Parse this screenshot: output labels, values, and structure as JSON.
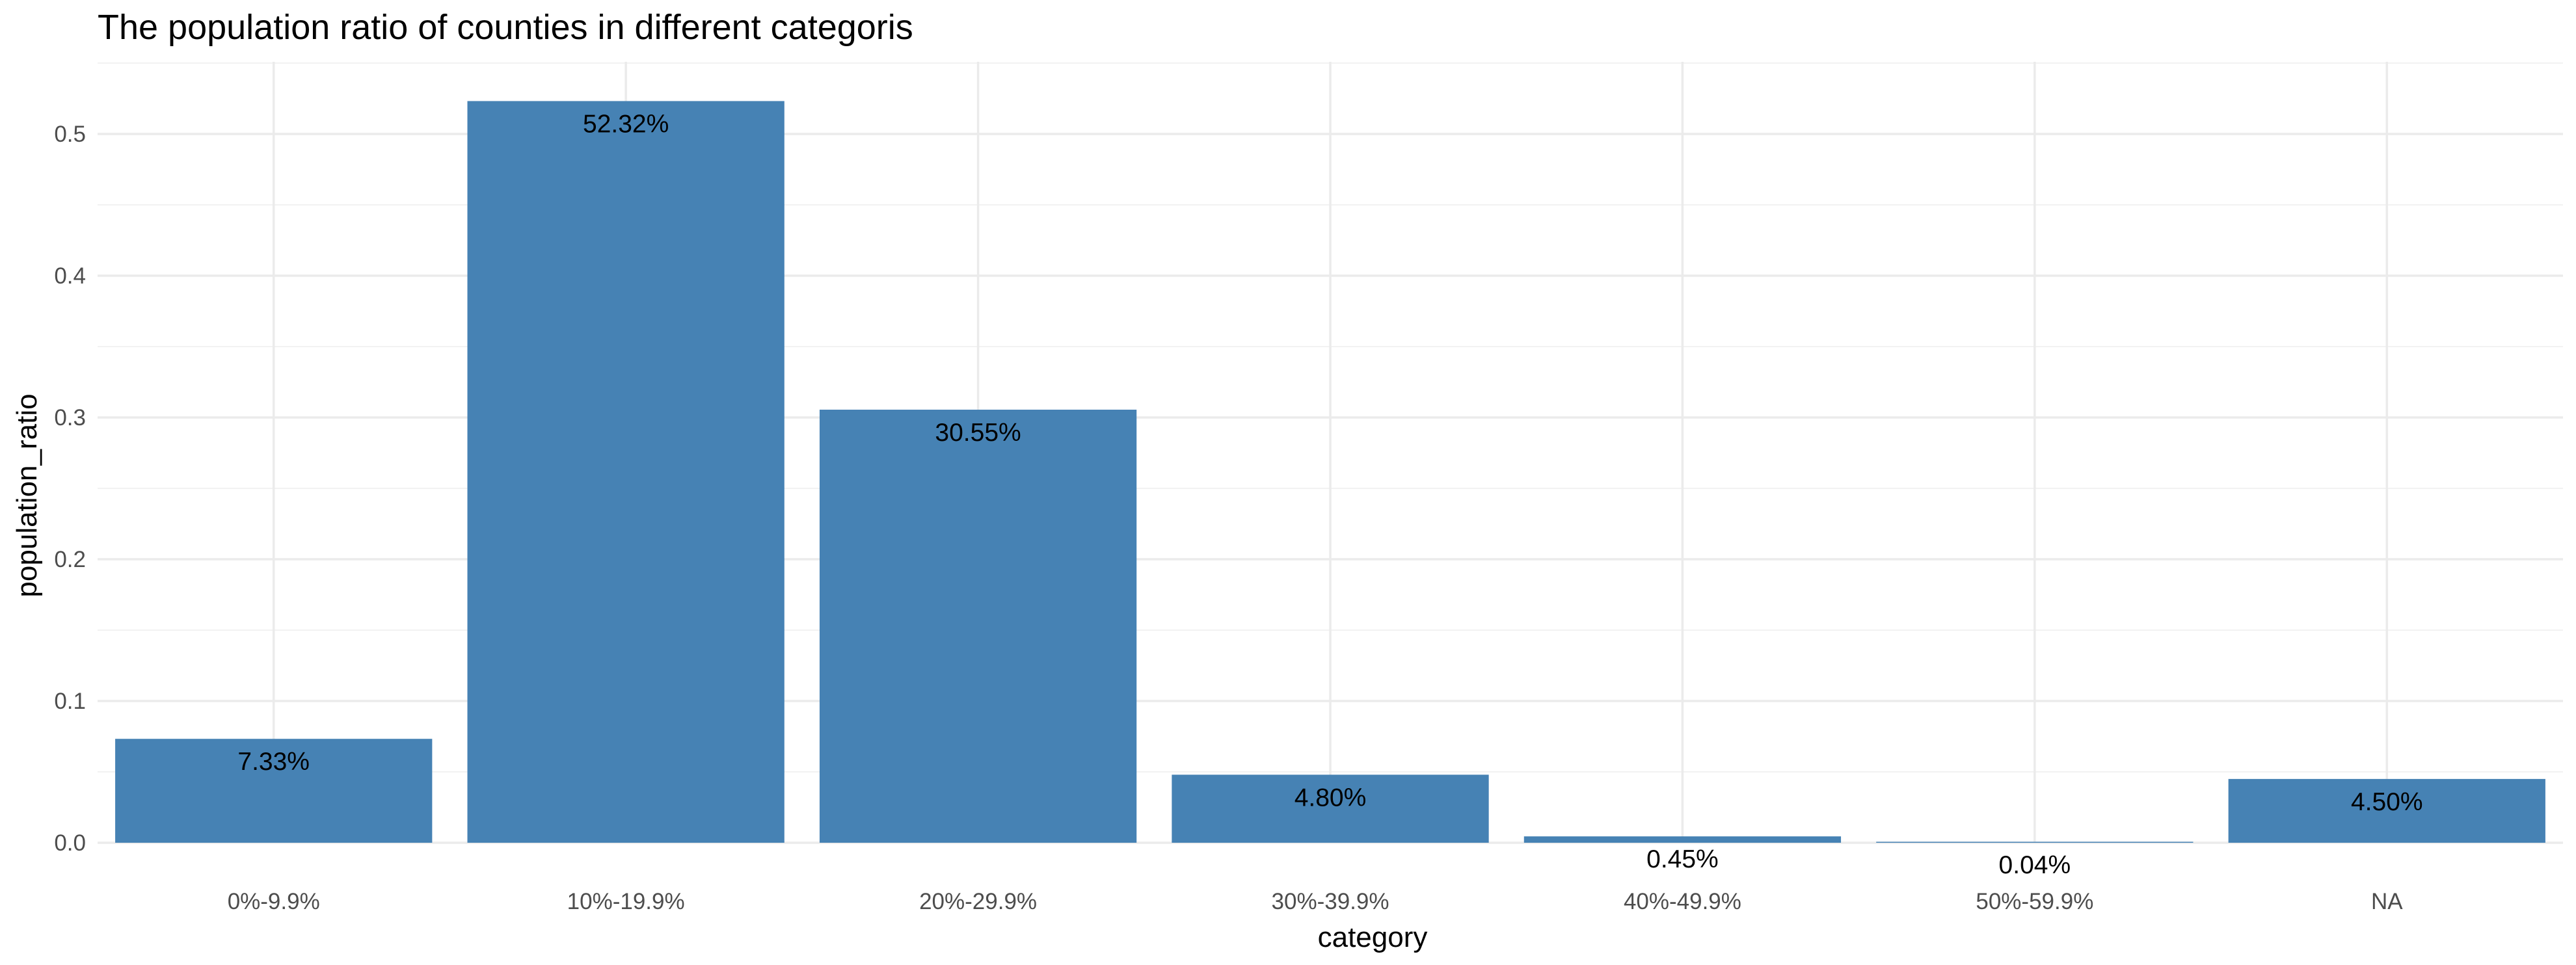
{
  "chart_data": {
    "type": "bar",
    "title": "The population ratio of counties in different categoris",
    "xlabel": "category",
    "ylabel": "population_ratio",
    "categories": [
      "0%-9.9%",
      "10%-19.9%",
      "20%-29.9%",
      "30%-39.9%",
      "40%-49.9%",
      "50%-59.9%",
      "NA"
    ],
    "values": [
      0.0733,
      0.5232,
      0.3055,
      0.048,
      0.0045,
      0.0004,
      0.045
    ],
    "data_labels": [
      "7.33%",
      "52.32%",
      "30.55%",
      "4.80%",
      "0.45%",
      "0.04%",
      "4.50%"
    ],
    "ylim": [
      0,
      0.55
    ],
    "yticks": [
      0.0,
      0.1,
      0.2,
      0.3,
      0.4,
      0.5
    ],
    "ytick_labels": [
      "0.0",
      "0.1",
      "0.2",
      "0.3",
      "0.4",
      "0.5"
    ],
    "grid": true,
    "legend": "none",
    "bar_color": "#4682B4"
  }
}
